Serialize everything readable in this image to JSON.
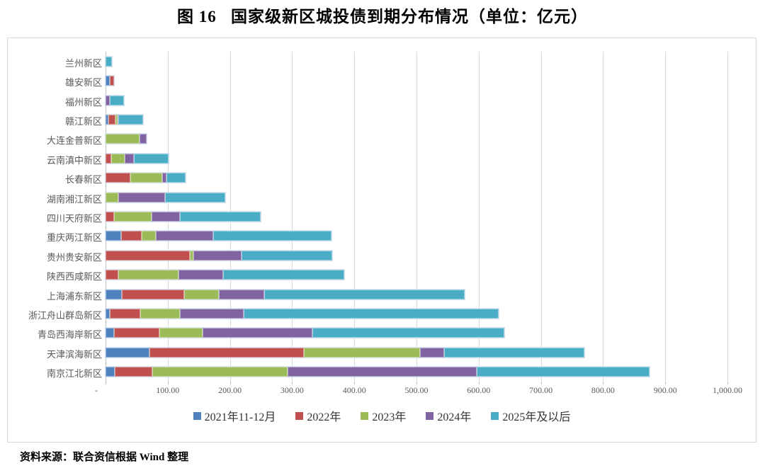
{
  "page": {
    "title": "图 16   国家级新区城投债到期分布情况（单位：亿元）",
    "source": "资料来源：联合资信根据 Wind 整理"
  },
  "chart_data": {
    "type": "bar",
    "variant": "horizontal-stacked",
    "title": "图 16 国家级新区城投债到期分布情况（单位：亿元）",
    "unit": "亿元",
    "grid": true,
    "legend_position": "bottom",
    "xlim": [
      0,
      1000
    ],
    "x_ticks": [
      "-",
      "100.00",
      "200.00",
      "300.00",
      "400.00",
      "500.00",
      "600.00",
      "700.00",
      "800.00",
      "900.00",
      "1,000.00"
    ],
    "categories": [
      "兰州新区",
      "雄安新区",
      "福州新区",
      "赣江新区",
      "大连金普新区",
      "云南滇中新区",
      "长春新区",
      "湖南湘江新区",
      "四川天府新区",
      "重庆两江新区",
      "贵州贵安新区",
      "陕西西咸新区",
      "上海浦东新区",
      "浙江舟山群岛新区",
      "青岛西海岸新区",
      "天津滨海新区",
      "南京江北新区"
    ],
    "series": [
      {
        "name": "2021年11-12月",
        "color": "#4F81BD",
        "values": [
          0,
          7,
          0,
          4,
          0,
          0,
          0,
          0,
          0,
          25,
          0,
          0,
          26,
          7,
          14,
          71,
          15
        ]
      },
      {
        "name": "2022年",
        "color": "#C0504D",
        "values": [
          0,
          7,
          0,
          12,
          0,
          9,
          40,
          0,
          14,
          33,
          135,
          20,
          100,
          49,
          73,
          248,
          60
        ]
      },
      {
        "name": "2023年",
        "color": "#9BBB59",
        "values": [
          0,
          0,
          0,
          3,
          55,
          22,
          51,
          21,
          60,
          23,
          6,
          97,
          56,
          64,
          69,
          187,
          218
        ]
      },
      {
        "name": "2024年",
        "color": "#8064A2",
        "values": [
          0,
          0,
          7,
          2,
          11,
          15,
          7,
          75,
          46,
          92,
          78,
          72,
          73,
          102,
          177,
          39,
          304
        ]
      },
      {
        "name": "2025年及以后",
        "color": "#4BACC6",
        "values": [
          10,
          0,
          23,
          39,
          0,
          55,
          31,
          97,
          130,
          190,
          145,
          195,
          322,
          410,
          308,
          225,
          278
        ]
      }
    ],
    "totals": [
      10,
      14,
      30,
      60,
      66,
      101,
      129,
      193,
      250,
      363,
      364,
      384,
      577,
      632,
      641,
      770,
      875
    ]
  }
}
